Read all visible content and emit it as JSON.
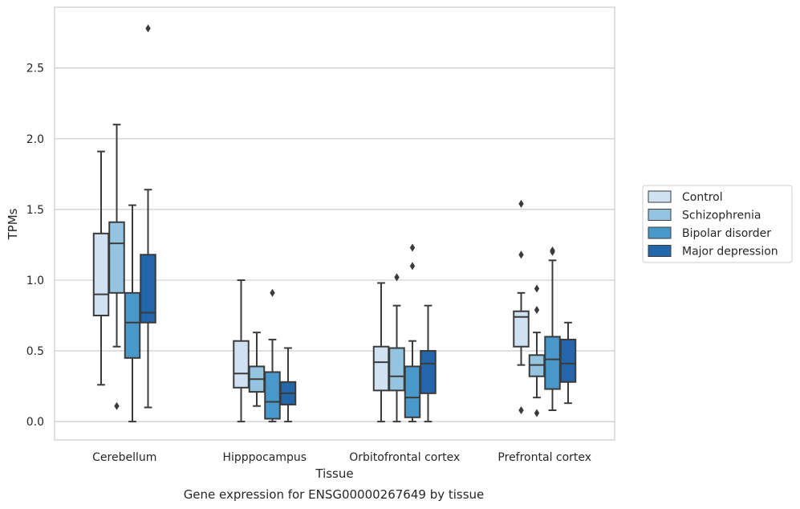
{
  "caption": "Gene expression for ENSG00000267649 by tissue",
  "chart_data": {
    "type": "boxplot",
    "xlabel": "Tissue",
    "ylabel": "TPMs",
    "ylim": [
      -0.13,
      2.93
    ],
    "yticks": [
      0.0,
      0.5,
      1.0,
      1.5,
      2.0,
      2.5
    ],
    "ytick_labels": [
      "0.0",
      "0.5",
      "1.0",
      "1.5",
      "2.0",
      "2.5"
    ],
    "categories": [
      "Cerebellum",
      "Hipppocampus",
      "Orbitofrontal cortex",
      "Prefrontal cortex"
    ],
    "grid": "horizontal",
    "legend_position": "right",
    "series": [
      {
        "name": "Control",
        "color": "#d0e1f2",
        "boxes": [
          {
            "whislo": 0.26,
            "q1": 0.75,
            "med": 0.9,
            "q3": 1.33,
            "whishi": 1.91,
            "fliers": []
          },
          {
            "whislo": 0.0,
            "q1": 0.24,
            "med": 0.34,
            "q3": 0.57,
            "whishi": 1.0,
            "fliers": []
          },
          {
            "whislo": 0.0,
            "q1": 0.22,
            "med": 0.42,
            "q3": 0.53,
            "whishi": 0.98,
            "fliers": []
          },
          {
            "whislo": 0.4,
            "q1": 0.53,
            "med": 0.74,
            "q3": 0.78,
            "whishi": 0.91,
            "fliers": [
              1.18,
              1.54,
              0.08
            ]
          }
        ]
      },
      {
        "name": "Schizophrenia",
        "color": "#94c4df",
        "boxes": [
          {
            "whislo": 0.53,
            "q1": 0.91,
            "med": 1.26,
            "q3": 1.41,
            "whishi": 2.1,
            "fliers": [
              0.11
            ]
          },
          {
            "whislo": 0.11,
            "q1": 0.21,
            "med": 0.3,
            "q3": 0.39,
            "whishi": 0.63,
            "fliers": []
          },
          {
            "whislo": 0.0,
            "q1": 0.22,
            "med": 0.32,
            "q3": 0.52,
            "whishi": 0.82,
            "fliers": [
              1.02
            ]
          },
          {
            "whislo": 0.17,
            "q1": 0.32,
            "med": 0.4,
            "q3": 0.47,
            "whishi": 0.63,
            "fliers": [
              0.79,
              0.94,
              0.06
            ]
          }
        ]
      },
      {
        "name": "Bipolar disorder",
        "color": "#4a98c9",
        "boxes": [
          {
            "whislo": 0.0,
            "q1": 0.45,
            "med": 0.7,
            "q3": 0.91,
            "whishi": 1.53,
            "fliers": []
          },
          {
            "whislo": 0.0,
            "q1": 0.02,
            "med": 0.14,
            "q3": 0.35,
            "whishi": 0.58,
            "fliers": [
              0.91
            ]
          },
          {
            "whislo": 0.0,
            "q1": 0.03,
            "med": 0.17,
            "q3": 0.39,
            "whishi": 0.57,
            "fliers": [
              1.1,
              1.23
            ]
          },
          {
            "whislo": 0.08,
            "q1": 0.23,
            "med": 0.44,
            "q3": 0.6,
            "whishi": 1.14,
            "fliers": [
              1.2,
              1.21
            ]
          }
        ]
      },
      {
        "name": "Major depression",
        "color": "#2366a9",
        "boxes": [
          {
            "whislo": 0.1,
            "q1": 0.7,
            "med": 0.77,
            "q3": 1.18,
            "whishi": 1.64,
            "fliers": [
              2.78
            ]
          },
          {
            "whislo": 0.0,
            "q1": 0.12,
            "med": 0.2,
            "q3": 0.28,
            "whishi": 0.52,
            "fliers": []
          },
          {
            "whislo": 0.0,
            "q1": 0.2,
            "med": 0.41,
            "q3": 0.5,
            "whishi": 0.82,
            "fliers": []
          },
          {
            "whislo": 0.13,
            "q1": 0.28,
            "med": 0.41,
            "q3": 0.58,
            "whishi": 0.7,
            "fliers": []
          }
        ]
      }
    ]
  }
}
